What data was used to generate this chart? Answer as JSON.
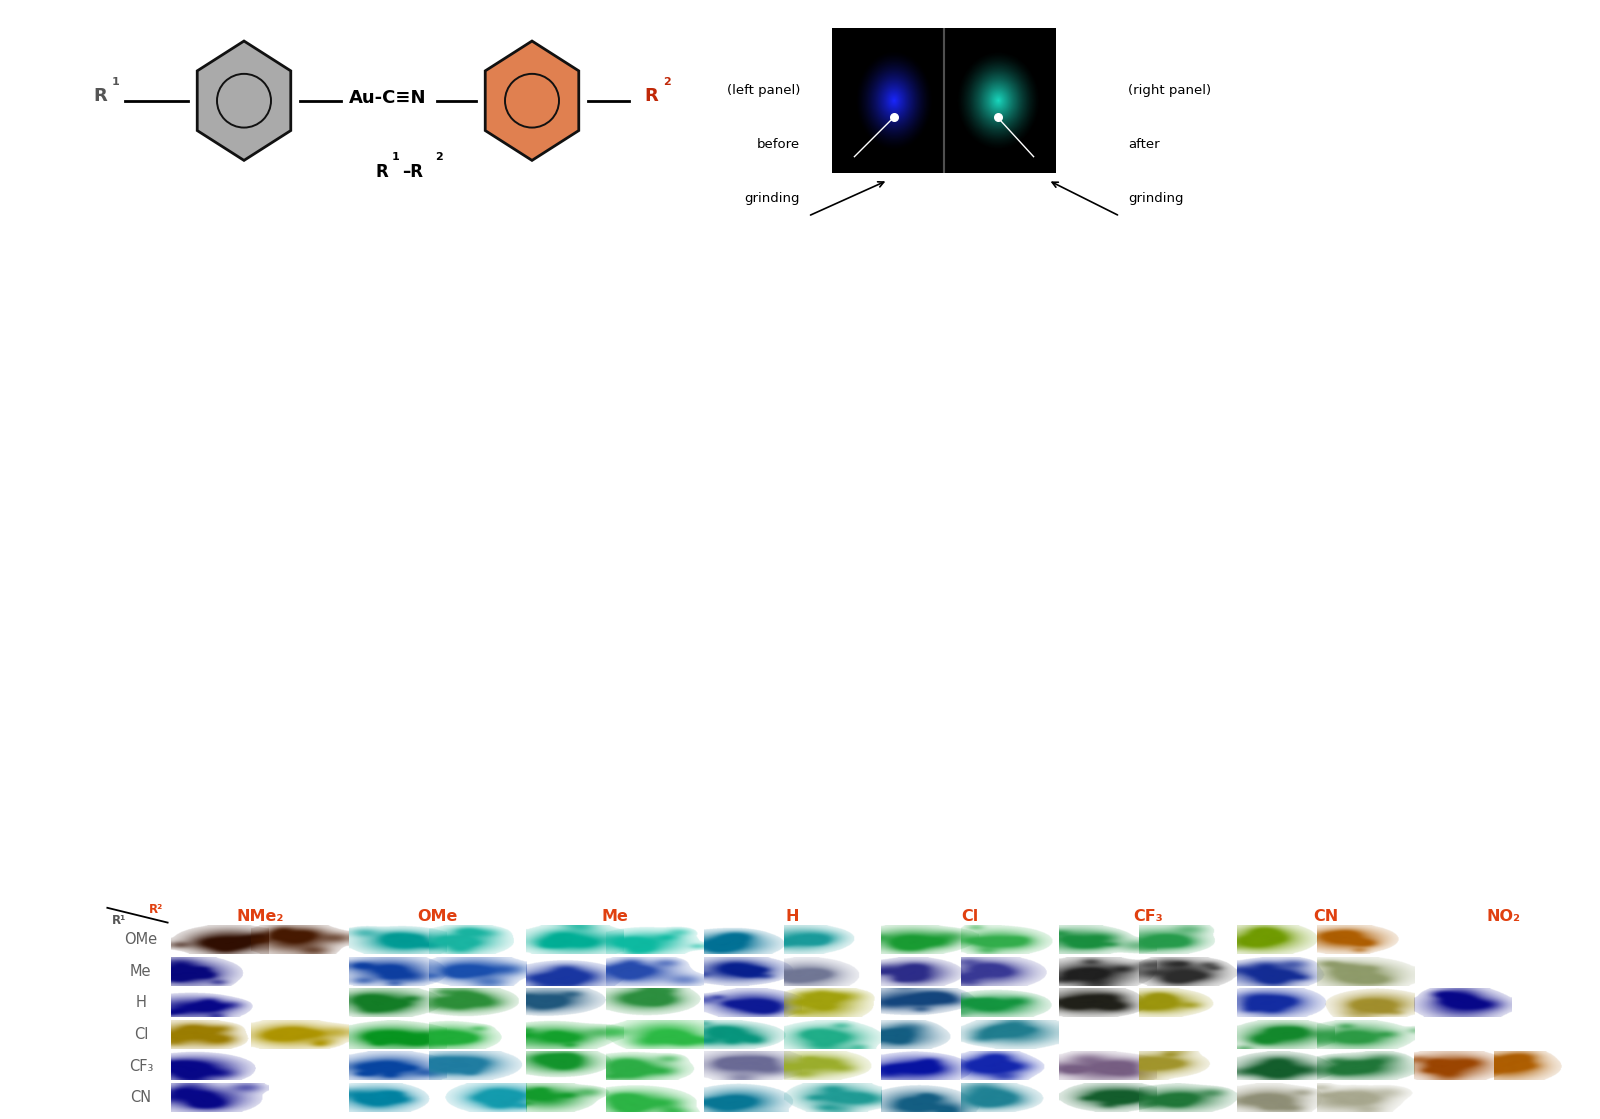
{
  "fig_width": 16.0,
  "fig_height": 11.19,
  "background_color": "#ffffff",
  "header_bg_color": "#fce8dc",
  "row_labels": [
    "OMe",
    "Me",
    "H",
    "Cl",
    "CF₃",
    "CN"
  ],
  "col_labels": [
    "NMe₂",
    "OMe",
    "Me",
    "H",
    "Cl",
    "CF₃",
    "CN",
    "NO₂"
  ],
  "row_label_color": "#606060",
  "col_label_color": "#e04010",
  "grid_bg_color": "#000000",
  "cell_data": [
    [
      {
        "colors": [
          "#3d1200",
          "#5a2000"
        ],
        "show": [
          true,
          true
        ]
      },
      {
        "colors": [
          "#00c8c0",
          "#20e8d0"
        ],
        "show": [
          true,
          true
        ]
      },
      {
        "colors": [
          "#00e0c0",
          "#10f0d0"
        ],
        "show": [
          true,
          true
        ]
      },
      {
        "colors": [
          "#0090c0",
          "#20c8c8"
        ],
        "show": [
          true,
          true
        ]
      },
      {
        "colors": [
          "#20c840",
          "#40e060"
        ],
        "show": [
          true,
          true
        ]
      },
      {
        "colors": [
          "#20b850",
          "#30c860"
        ],
        "show": [
          true,
          true
        ]
      },
      {
        "colors": [
          "#90c800",
          "#e07800"
        ],
        "show": [
          true,
          true
        ]
      },
      {
        "colors": [
          "#000000",
          "#000000"
        ],
        "show": [
          false,
          false
        ]
      }
    ],
    [
      {
        "colors": [
          "#0808a0",
          "#1515b8"
        ],
        "show": [
          true,
          false
        ]
      },
      {
        "colors": [
          "#1050d0",
          "#2065e0"
        ],
        "show": [
          true,
          true
        ]
      },
      {
        "colors": [
          "#2045d0",
          "#3060e0"
        ],
        "show": [
          true,
          true
        ]
      },
      {
        "colors": [
          "#0828b8",
          "#9098c0"
        ],
        "show": [
          true,
          true
        ]
      },
      {
        "colors": [
          "#3838b0",
          "#4848c0"
        ],
        "show": [
          true,
          true
        ]
      },
      {
        "colors": [
          "#282828",
          "#383838"
        ],
        "show": [
          true,
          true
        ]
      },
      {
        "colors": [
          "#1838c0",
          "#b8c888"
        ],
        "show": [
          true,
          true
        ]
      },
      {
        "colors": [
          "#000000",
          "#000000"
        ],
        "show": [
          false,
          false
        ]
      }
    ],
    [
      {
        "colors": [
          "#0808b0",
          "#1010c0"
        ],
        "show": [
          true,
          false
        ]
      },
      {
        "colors": [
          "#18a030",
          "#38b848"
        ],
        "show": [
          true,
          true
        ]
      },
      {
        "colors": [
          "#2870a0",
          "#38b850"
        ],
        "show": [
          true,
          true
        ]
      },
      {
        "colors": [
          "#1020c0",
          "#d0d010"
        ],
        "show": [
          true,
          true
        ]
      },
      {
        "colors": [
          "#1858a0",
          "#18c050"
        ],
        "show": [
          true,
          true
        ]
      },
      {
        "colors": [
          "#282820",
          "#c8c010"
        ],
        "show": [
          true,
          true
        ]
      },
      {
        "colors": [
          "#1838d0",
          "#d0b838"
        ],
        "show": [
          true,
          true
        ]
      },
      {
        "colors": [
          "#0808b0",
          "#0808b0"
        ],
        "show": [
          true,
          false
        ]
      }
    ],
    [
      {
        "colors": [
          "#c8a000",
          "#e0c000"
        ],
        "show": [
          true,
          true
        ]
      },
      {
        "colors": [
          "#08c028",
          "#28e048"
        ],
        "show": [
          true,
          true
        ]
      },
      {
        "colors": [
          "#18d038",
          "#38f058"
        ],
        "show": [
          true,
          true
        ]
      },
      {
        "colors": [
          "#08c0a0",
          "#28e0b0"
        ],
        "show": [
          true,
          true
        ]
      },
      {
        "colors": [
          "#1878a8",
          "#28a0b8"
        ],
        "show": [
          true,
          true
        ]
      },
      {
        "colors": [
          "#000000",
          "#000000"
        ],
        "show": [
          false,
          false
        ]
      },
      {
        "colors": [
          "#18b038",
          "#38c858"
        ],
        "show": [
          true,
          true
        ]
      },
      {
        "colors": [
          "#000000",
          "#000000"
        ],
        "show": [
          false,
          false
        ]
      }
    ],
    [
      {
        "colors": [
          "#0808b0",
          "#1010c0"
        ],
        "show": [
          true,
          false
        ]
      },
      {
        "colors": [
          "#0858d0",
          "#28a0d0"
        ],
        "show": [
          true,
          true
        ]
      },
      {
        "colors": [
          "#18c038",
          "#38e058"
        ],
        "show": [
          true,
          true
        ]
      },
      {
        "colors": [
          "#8888c0",
          "#c8e038"
        ],
        "show": [
          true,
          true
        ]
      },
      {
        "colors": [
          "#0818d0",
          "#1830e0"
        ],
        "show": [
          true,
          true
        ]
      },
      {
        "colors": [
          "#9878a8",
          "#d0c038"
        ],
        "show": [
          true,
          true
        ]
      },
      {
        "colors": [
          "#187838",
          "#289848"
        ],
        "show": [
          true,
          true
        ]
      },
      {
        "colors": [
          "#c85800",
          "#e07800"
        ],
        "show": [
          true,
          true
        ]
      }
    ],
    [
      {
        "colors": [
          "#0808b0",
          "#1010c0"
        ],
        "show": [
          true,
          false
        ]
      },
      {
        "colors": [
          "#00a8d0",
          "#18c8e0"
        ],
        "show": [
          true,
          true
        ]
      },
      {
        "colors": [
          "#18c838",
          "#38e858"
        ],
        "show": [
          true,
          true
        ]
      },
      {
        "colors": [
          "#0898c0",
          "#28c8c0"
        ],
        "show": [
          true,
          true
        ]
      },
      {
        "colors": [
          "#1878a8",
          "#28a8c0"
        ],
        "show": [
          true,
          true
        ]
      },
      {
        "colors": [
          "#187838",
          "#289848"
        ],
        "show": [
          true,
          true
        ]
      },
      {
        "colors": [
          "#b8b898",
          "#d8d8b8"
        ],
        "show": [
          true,
          true
        ]
      },
      {
        "colors": [
          "#000000",
          "#000000"
        ],
        "show": [
          false,
          false
        ]
      }
    ]
  ]
}
